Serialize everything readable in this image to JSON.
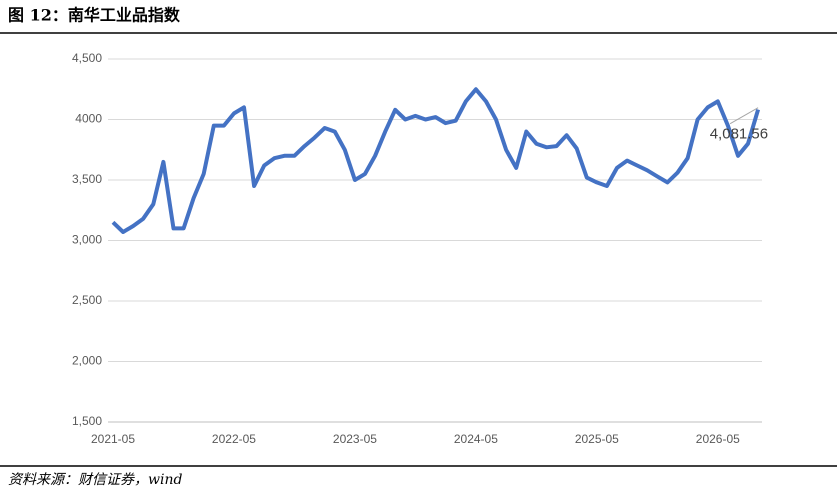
{
  "chart_data": {
    "type": "line",
    "title": "图 12：南华工业品指数",
    "source": "资料来源：财信证券，wind",
    "x": [
      "2021-05",
      "2021-06",
      "2021-07",
      "2021-08",
      "2021-09",
      "2021-10",
      "2021-11",
      "2021-12",
      "2022-01",
      "2022-02",
      "2022-03",
      "2022-04",
      "2022-05",
      "2022-06",
      "2022-07",
      "2022-08",
      "2022-09",
      "2022-10",
      "2022-11",
      "2022-12",
      "2023-01",
      "2023-02",
      "2023-03",
      "2023-04",
      "2023-05",
      "2023-06",
      "2023-07",
      "2023-08",
      "2023-09",
      "2023-10",
      "2023-11",
      "2023-12",
      "2024-01",
      "2024-02",
      "2024-03",
      "2024-04",
      "2024-05",
      "2024-06",
      "2024-07",
      "2024-08",
      "2024-09",
      "2024-10",
      "2024-11",
      "2024-12",
      "2025-01",
      "2025-02",
      "2025-03",
      "2025-04",
      "2025-05",
      "2025-06",
      "2025-07",
      "2025-08",
      "2025-09",
      "2025-10",
      "2025-11",
      "2025-12",
      "2026-01",
      "2026-02",
      "2026-03",
      "2026-04",
      "2026-05",
      "2026-06",
      "2026-07",
      "2026-08",
      "2026-09"
    ],
    "series": [
      {
        "color": "#4472c4",
        "values": [
          3150,
          3070,
          3120,
          3180,
          3300,
          3650,
          3100,
          3100,
          3350,
          3550,
          3950,
          3950,
          4050,
          4100,
          3450,
          3620,
          3680,
          3700,
          3700,
          3780,
          3850,
          3930,
          3900,
          3750,
          3500,
          3550,
          3700,
          3900,
          4080,
          4000,
          4030,
          4000,
          4020,
          3970,
          3990,
          4150,
          4250,
          4150,
          4000,
          3750,
          3600,
          3900,
          3800,
          3770,
          3780,
          3870,
          3760,
          3520,
          3480,
          3450,
          3600,
          3660,
          3620,
          3580,
          3530,
          3480,
          3560,
          3680,
          4000,
          4100,
          4150,
          3950,
          3700,
          3800,
          4081.56
        ],
        "value_labels": [
          null,
          null,
          null,
          null,
          null,
          null,
          null,
          null,
          null,
          null,
          null,
          null,
          null,
          null,
          null,
          null,
          null,
          null,
          null,
          null,
          null,
          null,
          null,
          null,
          null,
          null,
          null,
          null,
          null,
          null,
          null,
          null,
          null,
          null,
          null,
          null,
          null,
          null,
          null,
          null,
          null,
          null,
          null,
          null,
          null,
          null,
          null,
          null,
          null,
          null,
          null,
          null,
          null,
          null,
          null,
          null,
          null,
          null,
          null,
          null,
          null,
          null,
          null,
          null,
          "4,081.56"
        ]
      }
    ],
    "ylim": [
      1500,
      4500
    ],
    "yticks": [
      {
        "value": 1500,
        "label": "1,500"
      },
      {
        "value": 2000,
        "label": "2,000"
      },
      {
        "value": 2500,
        "label": "2,500"
      },
      {
        "value": 3000,
        "label": "3,000"
      },
      {
        "value": 3500,
        "label": "3,500"
      },
      {
        "value": 4000,
        "label": "4000"
      },
      {
        "value": 4500,
        "label": "4,500"
      }
    ],
    "xticks": [
      "2021-05",
      "2022-05",
      "2023-05",
      "2024-05",
      "2025-05",
      "2026-05"
    ],
    "grid": true
  }
}
